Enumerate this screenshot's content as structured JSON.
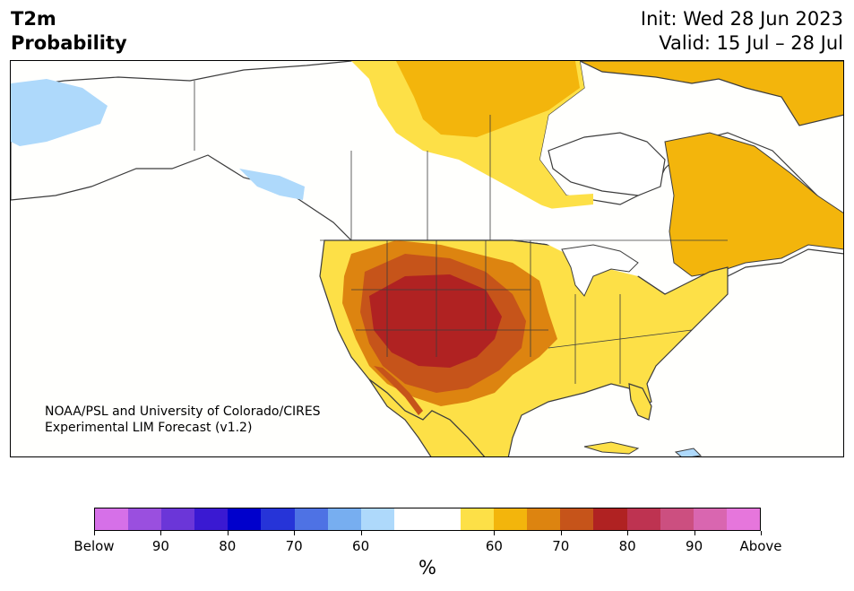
{
  "header": {
    "title_line1": "T2m",
    "title_line2": "Probability",
    "init": "Init: Wed 28 Jun 2023",
    "valid": "Valid: 15 Jul – 28 Jul"
  },
  "map": {
    "credit_line1": "NOAA/PSL and University of Colorado/CIRES",
    "credit_line2": "Experimental LIM Forecast (v1.2)",
    "colors": {
      "below_60": "#aed9fb",
      "above_60": "#fde047",
      "above_65": "#f3b50c",
      "above_70": "#dd8410",
      "above_75": "#c6541a",
      "above_80": "#b02222",
      "land_neutral": "#fffffd",
      "coast": "#3c3c3c"
    }
  },
  "colorbar": {
    "unit": "%",
    "colors": [
      "#d670e8",
      "#9a4fdf",
      "#6b36d8",
      "#3a19d2",
      "#0000cc",
      "#2634d8",
      "#4e72e4",
      "#77aef0",
      "#aed9fb",
      "#ffffff",
      "#ffffff",
      "#fde047",
      "#f3b50c",
      "#dd8410",
      "#c6541a",
      "#b02222",
      "#be3351",
      "#cc4f80",
      "#d966b0",
      "#e676dc"
    ],
    "labels": [
      "Below",
      "90",
      "80",
      "70",
      "60",
      "60",
      "70",
      "80",
      "90",
      "Above"
    ]
  }
}
